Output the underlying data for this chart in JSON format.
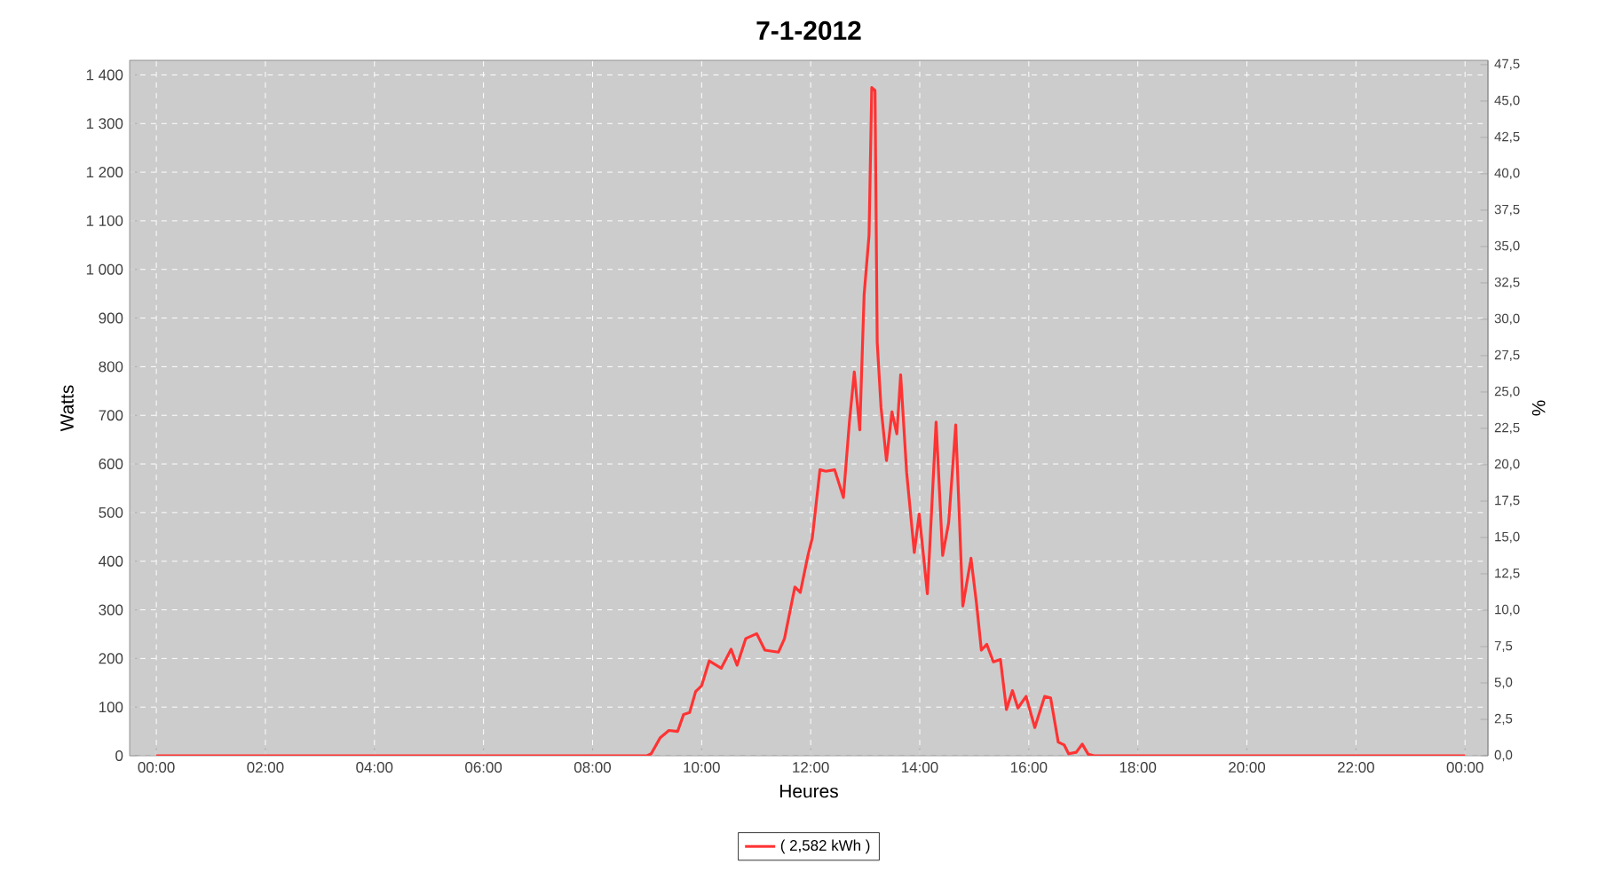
{
  "chart_data": {
    "type": "line",
    "title": "7-1-2012",
    "xlabel": "Heures",
    "ylabel": "Watts",
    "y2label": "%",
    "x": [
      0,
      9.0,
      9.075,
      9.24,
      9.4,
      9.56,
      9.67,
      9.78,
      9.89,
      10.0,
      10.14,
      10.36,
      10.54,
      10.65,
      10.81,
      11.01,
      11.16,
      11.41,
      11.52,
      11.71,
      11.81,
      11.95,
      12.03,
      12.17,
      12.28,
      12.44,
      12.6,
      12.71,
      12.8,
      12.9,
      12.98,
      13.07,
      13.12,
      13.18,
      13.22,
      13.29,
      13.39,
      13.49,
      13.58,
      13.65,
      13.76,
      13.9,
      13.99,
      14.14,
      14.3,
      14.42,
      14.53,
      14.66,
      14.79,
      14.94,
      15.04,
      15.13,
      15.23,
      15.35,
      15.48,
      15.59,
      15.7,
      15.8,
      15.95,
      16.11,
      16.29,
      16.4,
      16.54,
      16.65,
      16.73,
      16.87,
      16.98,
      17.09,
      17.2,
      24
    ],
    "series": [
      {
        "name": "( 2,582 kWh )",
        "color": "#ff3333",
        "values": [
          0,
          0,
          4,
          37,
          52,
          50,
          85,
          89,
          132,
          144,
          195,
          180,
          219,
          186,
          241,
          251,
          217,
          213,
          241,
          347,
          336,
          412,
          448,
          588,
          585,
          588,
          531,
          686,
          789,
          670,
          948,
          1070,
          1374,
          1368,
          850,
          716,
          607,
          707,
          662,
          783,
          582,
          418,
          497,
          333,
          686,
          412,
          479,
          680,
          308,
          406,
          314,
          217,
          229,
          193,
          198,
          95,
          134,
          98,
          122,
          58,
          122,
          119,
          28,
          22,
          4,
          7,
          24,
          3,
          0,
          0
        ]
      }
    ],
    "xlim": [
      -0.49,
      24.42
    ],
    "xticks": [
      {
        "value": 0,
        "label": "00:00"
      },
      {
        "value": 2,
        "label": "02:00"
      },
      {
        "value": 4,
        "label": "04:00"
      },
      {
        "value": 6,
        "label": "06:00"
      },
      {
        "value": 8,
        "label": "08:00"
      },
      {
        "value": 10,
        "label": "10:00"
      },
      {
        "value": 12,
        "label": "12:00"
      },
      {
        "value": 14,
        "label": "14:00"
      },
      {
        "value": 16,
        "label": "16:00"
      },
      {
        "value": 18,
        "label": "18:00"
      },
      {
        "value": 20,
        "label": "20:00"
      },
      {
        "value": 22,
        "label": "22:00"
      },
      {
        "value": 24,
        "label": "00:00"
      }
    ],
    "ylim": [
      0,
      1430
    ],
    "yticks": [
      0,
      100,
      200,
      300,
      400,
      500,
      600,
      700,
      800,
      900,
      {
        "value": 1000,
        "label": "1 000"
      },
      {
        "value": 1100,
        "label": "1 100"
      },
      {
        "value": 1200,
        "label": "1 200"
      },
      {
        "value": 1300,
        "label": "1 300"
      },
      {
        "value": 1400,
        "label": "1 400"
      }
    ],
    "y2lim": [
      0,
      47.8
    ],
    "y2ticks": [
      {
        "value": 0,
        "label": "0,0"
      },
      {
        "value": 2.5,
        "label": "2,5"
      },
      {
        "value": 5,
        "label": "5,0"
      },
      {
        "value": 7.5,
        "label": "7,5"
      },
      {
        "value": 10,
        "label": "10,0"
      },
      {
        "value": 12.5,
        "label": "12,5"
      },
      {
        "value": 15,
        "label": "15,0"
      },
      {
        "value": 17.5,
        "label": "17,5"
      },
      {
        "value": 20,
        "label": "20,0"
      },
      {
        "value": 22.5,
        "label": "22,5"
      },
      {
        "value": 25,
        "label": "25,0"
      },
      {
        "value": 27.5,
        "label": "27,5"
      },
      {
        "value": 30,
        "label": "30,0"
      },
      {
        "value": 32.5,
        "label": "32,5"
      },
      {
        "value": 35,
        "label": "35,0"
      },
      {
        "value": 37.5,
        "label": "37,5"
      },
      {
        "value": 40,
        "label": "40,0"
      },
      {
        "value": 42.5,
        "label": "42,5"
      },
      {
        "value": 45,
        "label": "45,0"
      },
      {
        "value": 47.5,
        "label": "47,5"
      }
    ],
    "grid": true,
    "legend": "bottom",
    "marker": "none",
    "line_style": "solid"
  }
}
